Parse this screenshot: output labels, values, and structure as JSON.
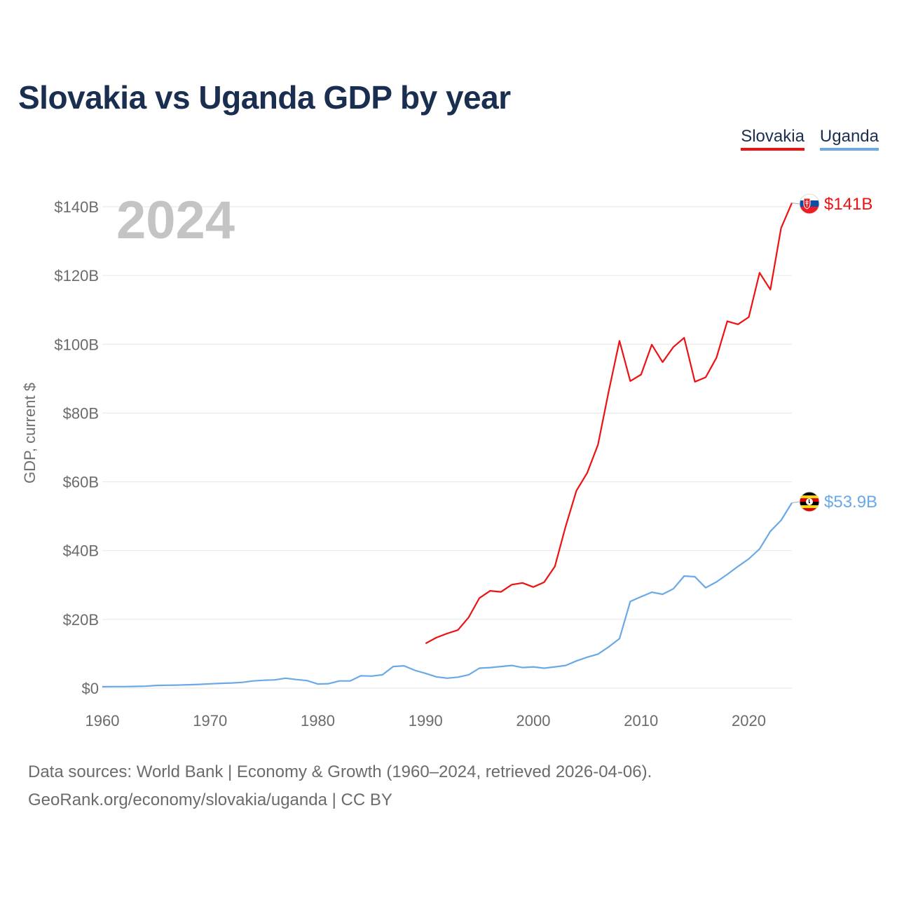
{
  "header": {
    "title": "Slovakia vs Uganda GDP by year"
  },
  "legend": [
    {
      "label": "Slovakia",
      "color": "#ee1111"
    },
    {
      "label": "Uganda",
      "color": "#6aa9e6"
    }
  ],
  "footer": {
    "source_line1": "Data sources: World Bank | Economy & Growth (1960–2024, retrieved 2026-04-06).",
    "source_line2": "GeoRank.org/economy/slovakia/uganda | CC BY"
  },
  "chart_data": {
    "type": "line",
    "title": "Slovakia vs Uganda GDP by year",
    "xlabel": "",
    "ylabel": "GDP, current $",
    "year_label": "2024",
    "xlim": [
      1960,
      2024
    ],
    "ylim": [
      0,
      150
    ],
    "y_unit": "billions USD",
    "x_ticks": [
      1960,
      1970,
      1980,
      1990,
      2000,
      2010,
      2020
    ],
    "x_tick_labels": [
      "1960",
      "1970",
      "1980",
      "1990",
      "2000",
      "2010",
      "2020"
    ],
    "y_ticks": [
      0,
      20,
      40,
      60,
      80,
      100,
      120,
      140
    ],
    "y_tick_labels": [
      "$0",
      "$20B",
      "$40B",
      "$60B",
      "$80B",
      "$100B",
      "$120B",
      "$140B"
    ],
    "grid": true,
    "legend_position": "top-right",
    "series": [
      {
        "name": "Slovakia",
        "color": "#ee1111",
        "end_label": "$141B",
        "flag": "slovakia-flag",
        "x": [
          1990,
          1991,
          1992,
          1993,
          1994,
          1995,
          1996,
          1997,
          1998,
          1999,
          2000,
          2001,
          2002,
          2003,
          2004,
          2005,
          2006,
          2007,
          2008,
          2009,
          2010,
          2011,
          2012,
          2013,
          2014,
          2015,
          2016,
          2017,
          2018,
          2019,
          2020,
          2021,
          2022,
          2023,
          2024
        ],
        "values": [
          13.0,
          14.7,
          15.9,
          16.9,
          20.6,
          26.2,
          28.3,
          28.0,
          30.1,
          30.6,
          29.4,
          30.8,
          35.4,
          47.0,
          57.4,
          62.6,
          70.8,
          86.3,
          101.0,
          89.3,
          91.2,
          99.9,
          94.8,
          99.2,
          101.9,
          89.1,
          90.4,
          96.1,
          106.7,
          105.8,
          107.9,
          120.8,
          115.9,
          133.8,
          141.1
        ]
      },
      {
        "name": "Uganda",
        "color": "#6aa9e6",
        "end_label": "$53.9B",
        "flag": "uganda-flag",
        "x": [
          1960,
          1961,
          1962,
          1963,
          1964,
          1965,
          1966,
          1967,
          1968,
          1969,
          1970,
          1971,
          1972,
          1973,
          1974,
          1975,
          1976,
          1977,
          1978,
          1979,
          1980,
          1981,
          1982,
          1983,
          1984,
          1985,
          1986,
          1987,
          1988,
          1989,
          1990,
          1991,
          1992,
          1993,
          1994,
          1995,
          1996,
          1997,
          1998,
          1999,
          2000,
          2001,
          2002,
          2003,
          2004,
          2005,
          2006,
          2007,
          2008,
          2009,
          2010,
          2011,
          2012,
          2013,
          2014,
          2015,
          2016,
          2017,
          2018,
          2019,
          2020,
          2021,
          2022,
          2023,
          2024
        ],
        "values": [
          0.42,
          0.44,
          0.45,
          0.5,
          0.58,
          0.8,
          0.86,
          0.9,
          1.0,
          1.1,
          1.26,
          1.4,
          1.5,
          1.7,
          2.1,
          2.3,
          2.4,
          2.9,
          2.5,
          2.2,
          1.2,
          1.3,
          2.1,
          2.1,
          3.6,
          3.5,
          3.9,
          6.3,
          6.5,
          5.2,
          4.3,
          3.3,
          2.9,
          3.2,
          3.9,
          5.8,
          6.0,
          6.3,
          6.6,
          6.0,
          6.2,
          5.8,
          6.2,
          6.6,
          7.9,
          9.0,
          9.9,
          12.0,
          14.4,
          25.2,
          26.6,
          27.9,
          27.3,
          28.9,
          32.6,
          32.4,
          29.2,
          30.9,
          33.1,
          35.4,
          37.6,
          40.5,
          45.6,
          48.8,
          53.9
        ]
      }
    ]
  }
}
